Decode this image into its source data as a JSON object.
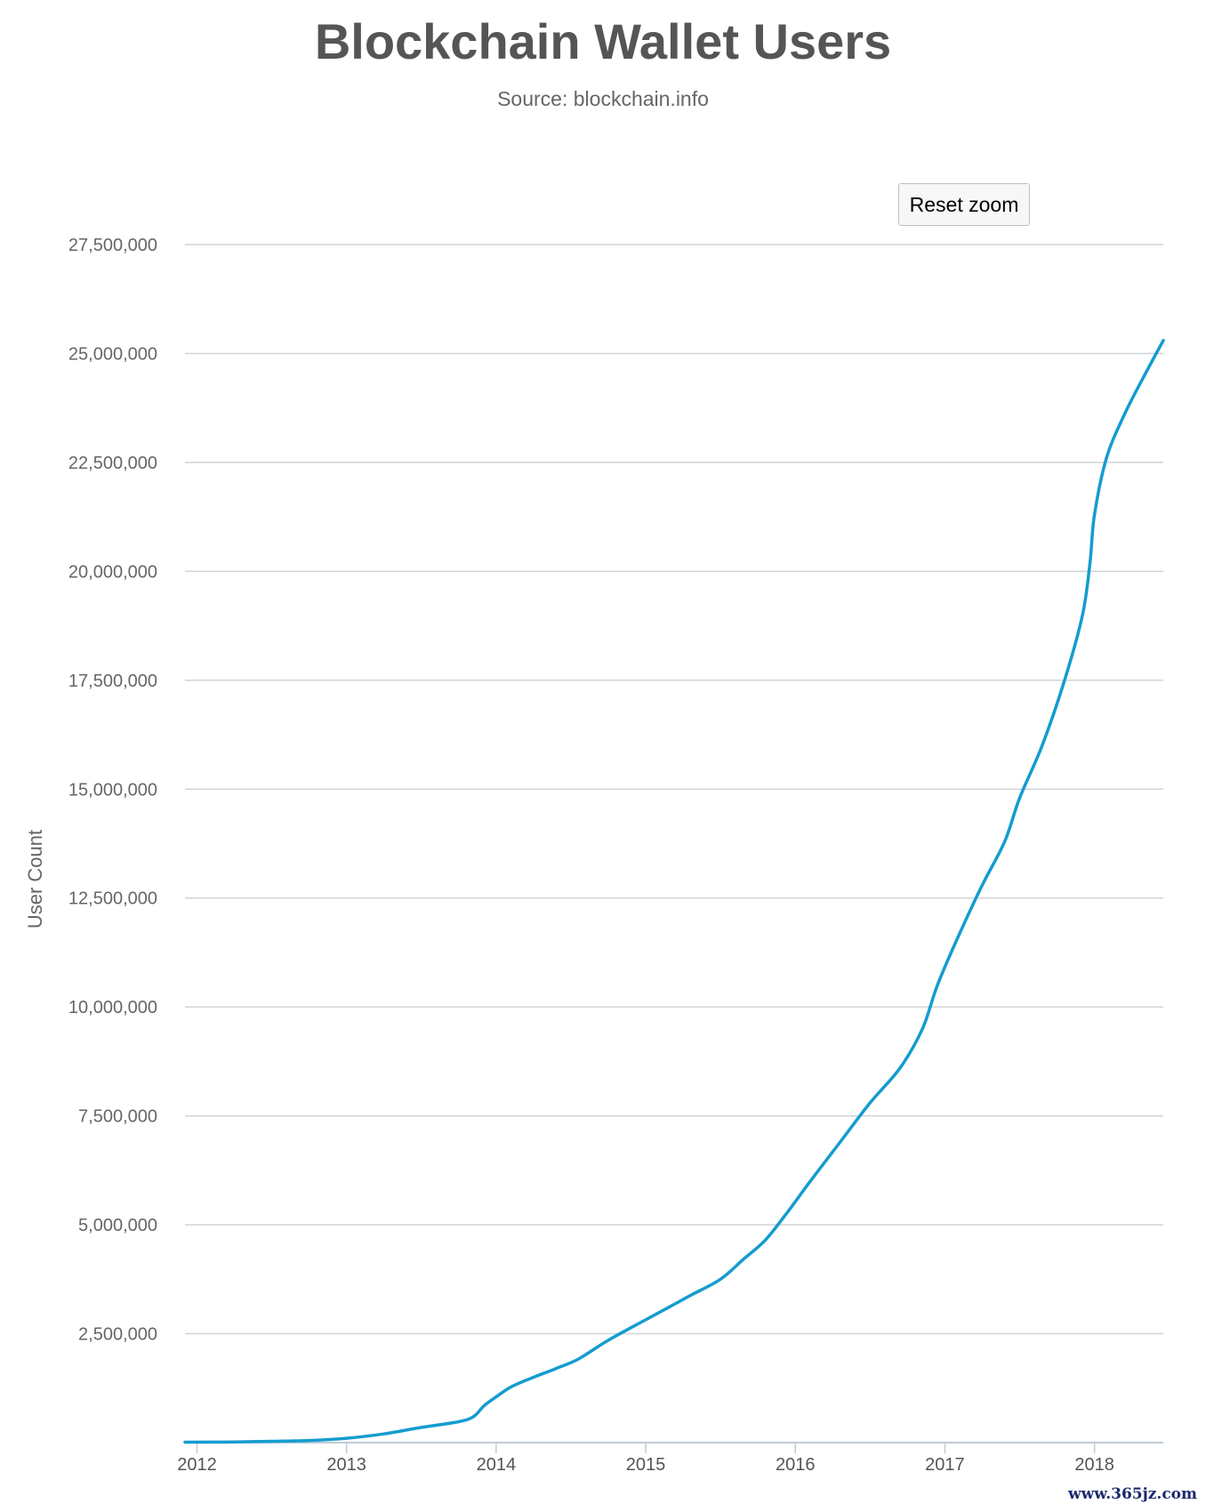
{
  "header": {
    "title": "Blockchain Wallet Users",
    "subtitle": "Source: blockchain.info"
  },
  "toolbar": {
    "reset_zoom_label": "Reset zoom"
  },
  "watermark": "www.365jz.com",
  "colors": {
    "series": "#149ccf",
    "grid": "#d0d3d8",
    "axis": "#c0cbd8"
  },
  "chart_data": {
    "type": "line",
    "title": "Blockchain Wallet Users",
    "subtitle": "Source: blockchain.info",
    "xlabel": "",
    "ylabel": "User Count",
    "xlim": [
      2011.92,
      2018.46
    ],
    "ylim": [
      0,
      27500000
    ],
    "grid": true,
    "legend": "none",
    "x_ticks": [
      2012,
      2013,
      2014,
      2015,
      2016,
      2017,
      2018
    ],
    "x_tick_labels": [
      "2012",
      "2013",
      "2014",
      "2015",
      "2016",
      "2017",
      "2018"
    ],
    "y_ticks": [
      2500000,
      5000000,
      7500000,
      10000000,
      12500000,
      15000000,
      17500000,
      20000000,
      22500000,
      25000000,
      27500000
    ],
    "y_tick_labels": [
      "2,500,000",
      "5,000,000",
      "7,500,000",
      "10,000,000",
      "12,500,000",
      "15,000,000",
      "17,500,000",
      "20,000,000",
      "22,500,000",
      "25,000,000",
      "27,500,000"
    ],
    "series": [
      {
        "points": [
          [
            2011.92,
            10000
          ],
          [
            2012.25,
            15000
          ],
          [
            2012.5,
            30000
          ],
          [
            2012.75,
            50000
          ],
          [
            2013.0,
            100000
          ],
          [
            2013.25,
            200000
          ],
          [
            2013.5,
            350000
          ],
          [
            2013.75,
            480000
          ],
          [
            2013.85,
            600000
          ],
          [
            2013.92,
            850000
          ],
          [
            2014.0,
            1050000
          ],
          [
            2014.1,
            1280000
          ],
          [
            2014.25,
            1500000
          ],
          [
            2014.4,
            1700000
          ],
          [
            2014.55,
            1920000
          ],
          [
            2014.75,
            2350000
          ],
          [
            2015.0,
            2820000
          ],
          [
            2015.15,
            3100000
          ],
          [
            2015.3,
            3380000
          ],
          [
            2015.5,
            3750000
          ],
          [
            2015.65,
            4200000
          ],
          [
            2015.8,
            4650000
          ],
          [
            2015.95,
            5300000
          ],
          [
            2016.1,
            6000000
          ],
          [
            2016.3,
            6900000
          ],
          [
            2016.5,
            7800000
          ],
          [
            2016.7,
            8600000
          ],
          [
            2016.85,
            9500000
          ],
          [
            2016.95,
            10500000
          ],
          [
            2017.1,
            11700000
          ],
          [
            2017.25,
            12800000
          ],
          [
            2017.4,
            13800000
          ],
          [
            2017.5,
            14800000
          ],
          [
            2017.65,
            16000000
          ],
          [
            2017.8,
            17500000
          ],
          [
            2017.92,
            19000000
          ],
          [
            2017.97,
            20200000
          ],
          [
            2018.0,
            21300000
          ],
          [
            2018.08,
            22600000
          ],
          [
            2018.2,
            23600000
          ],
          [
            2018.35,
            24600000
          ],
          [
            2018.46,
            25300000
          ]
        ]
      }
    ]
  }
}
